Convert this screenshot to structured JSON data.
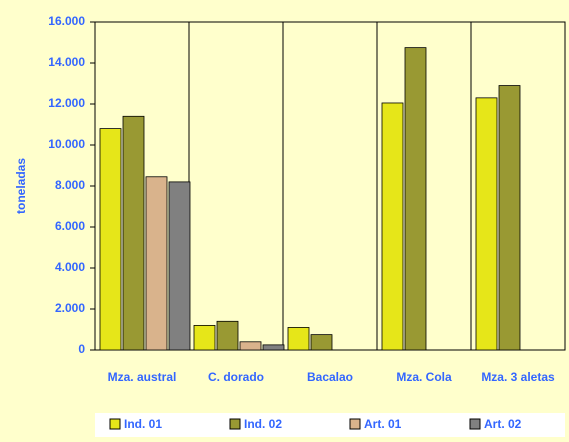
{
  "chart_data": {
    "type": "bar",
    "y_label": "toneladas",
    "categories": [
      "Mza. austral",
      "C. dorado",
      "Bacalao",
      "Mza. Cola",
      "Mza. 3 aletas"
    ],
    "series": [
      {
        "name": "Ind. 01",
        "color": "#e6e619",
        "values": [
          10800,
          1200,
          1100,
          12050,
          12300
        ]
      },
      {
        "name": "Ind. 02",
        "color": "#999933",
        "values": [
          11400,
          1400,
          750,
          14750,
          12900
        ]
      },
      {
        "name": "Art. 01",
        "color": "#d9b38c",
        "values": [
          8450,
          400,
          null,
          null,
          null
        ]
      },
      {
        "name": "Art. 02",
        "color": "#808080",
        "values": [
          8200,
          250,
          null,
          null,
          null
        ]
      }
    ],
    "ylim": [
      0,
      16000
    ],
    "yticks": [
      {
        "value": 0,
        "label": "0"
      },
      {
        "value": 2000,
        "label": "2.000"
      },
      {
        "value": 4000,
        "label": "4.000"
      },
      {
        "value": 6000,
        "label": "6.000"
      },
      {
        "value": 8000,
        "label": "8.000"
      },
      {
        "value": 10000,
        "label": "10.000"
      },
      {
        "value": 12000,
        "label": "12.000"
      },
      {
        "value": 14000,
        "label": "14.000"
      },
      {
        "value": 16000,
        "label": "16.000"
      }
    ],
    "grid": true
  }
}
